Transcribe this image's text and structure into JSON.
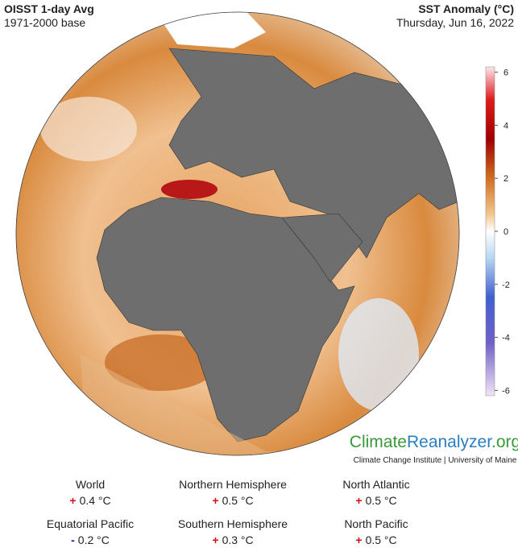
{
  "header": {
    "title": "OISST 1-day Avg",
    "subtitle": "1971-2000 base",
    "variable": "SST Anomaly (°C)",
    "date": "Thursday, Jun 16, 2022"
  },
  "colorbar": {
    "lim": [
      -6.2,
      6.2
    ],
    "ticks": [
      6,
      4,
      2,
      0,
      -2,
      -4,
      -6
    ]
  },
  "branding": {
    "parts": [
      "Climate",
      "Reanalyzer",
      ".org"
    ],
    "colors": [
      "#3a9a3a",
      "#2a7fc0",
      "#3a9a3a"
    ],
    "subtext": "Climate Change Institute | University of Maine"
  },
  "stats": [
    {
      "name": "World",
      "sign": "+",
      "sign_color": "#d01010",
      "value": "0.4 °C"
    },
    {
      "name": "Northern Hemisphere",
      "sign": "+",
      "sign_color": "#d01010",
      "value": "0.5 °C"
    },
    {
      "name": "North Atlantic",
      "sign": "+",
      "sign_color": "#d01010",
      "value": "0.5 °C"
    },
    {
      "name": "Equatorial Pacific",
      "sign": "-",
      "sign_color": "#1010c0",
      "value": "0.2 °C"
    },
    {
      "name": "Southern Hemisphere",
      "sign": "+",
      "sign_color": "#d01010",
      "value": "0.3 °C"
    },
    {
      "name": "North Pacific",
      "sign": "+",
      "sign_color": "#d01010",
      "value": "0.5 °C"
    }
  ]
}
